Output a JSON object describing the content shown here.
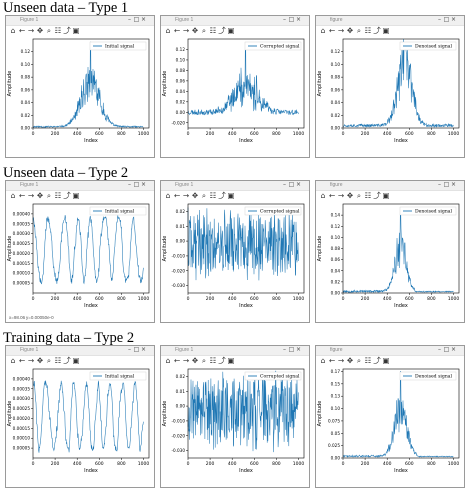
{
  "sections": [
    {
      "title": "Unseen data – Type 1"
    },
    {
      "title": "Unseen data – Type 2"
    },
    {
      "title": "Training data – Type 2"
    }
  ],
  "window": {
    "title_left": "Figure 1",
    "title_right": "figure"
  },
  "toolbar": [
    "home-icon",
    "back-icon",
    "forward-icon",
    "pan-icon",
    "zoom-icon",
    "configure-icon",
    "edit-icon",
    "save-icon"
  ],
  "statusbar": {
    "x": "x=98.06",
    "y": "y=0.00050e-0"
  },
  "colors": {
    "line": "#1f77b4",
    "axis": "#000000"
  },
  "chart_data": [
    {
      "type": "line",
      "row": 0,
      "legend": "Initial signal",
      "xlabel": "Index",
      "ylabel": "Amplitude",
      "xlim": [
        0,
        1050
      ],
      "xticks": [
        0,
        200,
        400,
        600,
        800,
        1000
      ],
      "ylim": [
        0,
        0.14
      ],
      "yticks": [
        0.0,
        0.02,
        0.04,
        0.06,
        0.08,
        0.1,
        0.12
      ],
      "gen": {
        "kind": "peak",
        "center": 520,
        "width": 120,
        "amp": 0.07,
        "noise": 0.006,
        "spikes": [
          [
            520,
            0.135
          ],
          [
            600,
            0.05
          ],
          [
            430,
            0.03
          ]
        ],
        "base": 0.002,
        "seed": 11
      }
    },
    {
      "type": "line",
      "row": 0,
      "legend": "Corrupted signal",
      "xlabel": "Index",
      "ylabel": "Amplitude",
      "xlim": [
        0,
        1050
      ],
      "xticks": [
        0,
        200,
        400,
        600,
        800,
        1000
      ],
      "ylim": [
        -0.03,
        0.14
      ],
      "yticks": [
        -0.02,
        0.0,
        0.02,
        0.04,
        0.06,
        0.08,
        0.1,
        0.12
      ],
      "gen": {
        "kind": "peak",
        "center": 520,
        "width": 150,
        "amp": 0.05,
        "noise": 0.025,
        "spikes": [
          [
            520,
            0.13
          ],
          [
            620,
            0.07
          ]
        ],
        "base": 0.0,
        "seed": 23
      }
    },
    {
      "type": "line",
      "row": 0,
      "legend": "Denoised signal",
      "xlabel": "Index",
      "ylabel": "Amplitude",
      "xlim": [
        0,
        1050
      ],
      "xticks": [
        0,
        200,
        400,
        600,
        800,
        1000
      ],
      "ylim": [
        0,
        0.14
      ],
      "yticks": [
        0.0,
        0.02,
        0.04,
        0.06,
        0.08,
        0.1,
        0.12
      ],
      "gen": {
        "kind": "peak",
        "center": 560,
        "width": 90,
        "amp": 0.1,
        "noise": 0.012,
        "spikes": [
          [
            560,
            0.13
          ]
        ],
        "base": 0.004,
        "seed": 37
      }
    },
    {
      "type": "line",
      "row": 1,
      "legend": "Initial signal",
      "xlabel": "Index",
      "ylabel": "Amplitude",
      "xlim": [
        0,
        1050
      ],
      "xticks": [
        0,
        200,
        400,
        600,
        800,
        1000
      ],
      "ylim": [
        0,
        0.00045
      ],
      "yticks": [
        5e-05,
        0.0001,
        0.00015,
        0.0002,
        0.00025,
        0.0003,
        0.00035,
        0.0004
      ],
      "gen": {
        "kind": "osc",
        "mean": 0.00022,
        "amp": 0.00016,
        "freq": 0.05,
        "noise": 3e-05,
        "seed": 5
      }
    },
    {
      "type": "line",
      "row": 1,
      "legend": "Corrupted signal",
      "xlabel": "Index",
      "ylabel": "Amplitude",
      "xlim": [
        0,
        1050
      ],
      "xticks": [
        0,
        200,
        400,
        600,
        800,
        1000
      ],
      "ylim": [
        -0.035,
        0.025
      ],
      "yticks": [
        -0.03,
        -0.02,
        -0.01,
        0.0,
        0.01,
        0.02
      ],
      "gen": {
        "kind": "noise",
        "mean": -0.002,
        "amp": 0.02,
        "seed": 41
      }
    },
    {
      "type": "line",
      "row": 1,
      "legend": "Denoised signal",
      "xlabel": "Index",
      "ylabel": "Amplitude",
      "xlim": [
        0,
        1050
      ],
      "xticks": [
        0,
        200,
        400,
        600,
        800,
        1000
      ],
      "ylim": [
        0,
        0.16
      ],
      "yticks": [
        0.0,
        0.02,
        0.04,
        0.06,
        0.08,
        0.1,
        0.12,
        0.14
      ],
      "gen": {
        "kind": "peak",
        "center": 520,
        "width": 70,
        "amp": 0.08,
        "noise": 0.01,
        "spikes": [
          [
            520,
            0.15
          ],
          [
            560,
            0.09
          ]
        ],
        "base": 0.003,
        "seed": 53,
        "cut": 650
      }
    },
    {
      "type": "line",
      "row": 2,
      "legend": "Initial signal",
      "xlabel": "Index",
      "ylabel": "Amplitude",
      "xlim": [
        0,
        1050
      ],
      "xticks": [
        0,
        200,
        400,
        600,
        800,
        1000
      ],
      "ylim": [
        0,
        0.00045
      ],
      "yticks": [
        5e-05,
        0.0001,
        0.00015,
        0.0002,
        0.00025,
        0.0003,
        0.00035,
        0.0004
      ],
      "gen": {
        "kind": "osc",
        "mean": 0.00021,
        "amp": 0.00017,
        "freq": 0.055,
        "noise": 3e-05,
        "seed": 9
      }
    },
    {
      "type": "line",
      "row": 2,
      "legend": "Corrupted signal",
      "xlabel": "Index",
      "ylabel": "Amplitude",
      "xlim": [
        0,
        1050
      ],
      "xticks": [
        0,
        200,
        400,
        600,
        800,
        1000
      ],
      "ylim": [
        -0.035,
        0.025
      ],
      "yticks": [
        -0.03,
        -0.02,
        -0.01,
        0.0,
        0.01,
        0.02
      ],
      "gen": {
        "kind": "noise",
        "mean": -0.004,
        "amp": 0.022,
        "seed": 77
      }
    },
    {
      "type": "line",
      "row": 2,
      "legend": "Denoised signal",
      "xlabel": "Index",
      "ylabel": "Amplitude",
      "xlim": [
        0,
        1050
      ],
      "xticks": [
        0,
        200,
        400,
        600,
        800,
        1000
      ],
      "ylim": [
        0,
        0.18
      ],
      "yticks": [
        0.0,
        0.025,
        0.05,
        0.075,
        0.1,
        0.125,
        0.15,
        0.175
      ],
      "gen": {
        "kind": "peak",
        "center": 520,
        "width": 80,
        "amp": 0.09,
        "noise": 0.01,
        "spikes": [
          [
            520,
            0.175
          ],
          [
            500,
            0.12
          ]
        ],
        "base": 0.004,
        "seed": 91,
        "cut": 680
      }
    }
  ]
}
